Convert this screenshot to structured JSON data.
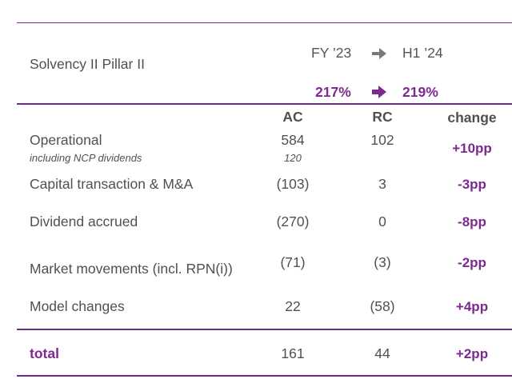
{
  "title": "Solvency II Pillar II",
  "period_from": "FY ’23",
  "period_to": "H1 ’24",
  "ratio_from": "217%",
  "ratio_to": "219%",
  "columns": {
    "ac": "AC",
    "rc": "RC",
    "change": "change"
  },
  "rows": [
    {
      "label": "Operational",
      "sublabel": "including NCP dividends",
      "ac": "584",
      "ac_sub": "120",
      "rc": "102",
      "change": "+10pp"
    },
    {
      "label": "Capital transaction & M&A",
      "ac": "(103)",
      "rc": "3",
      "change": "-3pp"
    },
    {
      "label": "Dividend accrued",
      "ac": "(270)",
      "rc": "0",
      "change": "-8pp"
    },
    {
      "label": "Market movements (incl. RPN(i))",
      "ac": "(71)",
      "rc": "(3)",
      "change": "-2pp"
    },
    {
      "label": "Model changes",
      "ac": "22",
      "rc": "(58)",
      "change": "+4pp"
    }
  ],
  "total": {
    "label": "total",
    "ac": "161",
    "rc": "44",
    "change": "+2pp"
  },
  "colors": {
    "accent": "#7d2a90",
    "text": "#505050",
    "arrow_grey": "#7a7a7a"
  },
  "icons": {
    "period_arrow": "arrow-right-icon",
    "ratio_arrow": "arrow-right-bold-icon"
  }
}
